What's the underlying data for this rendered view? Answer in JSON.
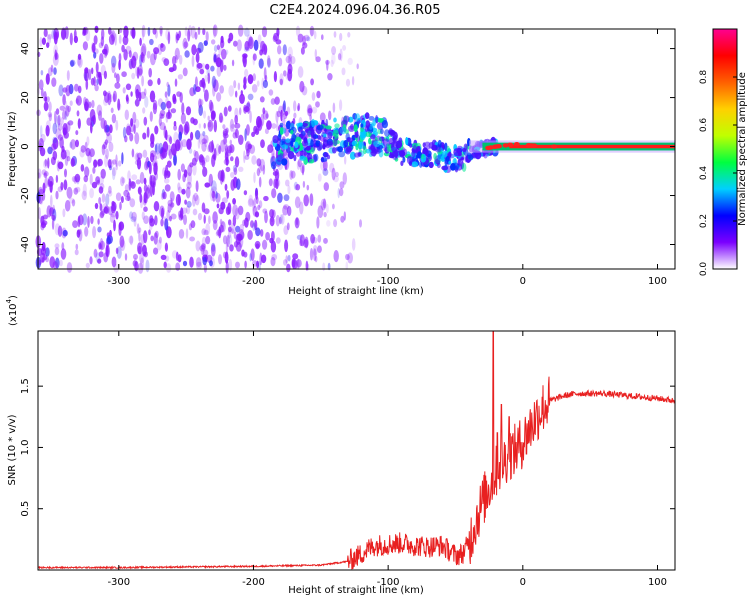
{
  "title": "C2E4.2024.096.04.36.R05",
  "chart_data": [
    {
      "type": "heatmap",
      "xlabel": "Height of straight line (km)",
      "ylabel": "Frequency (Hz)",
      "xlim": [
        -360,
        113
      ],
      "ylim": [
        -50,
        48
      ],
      "xticks": [
        -300,
        -200,
        -100,
        0,
        100
      ],
      "yticks": [
        -40,
        -20,
        0,
        20,
        40
      ],
      "colorbar": {
        "label": "Normalized spectral amplitude",
        "range": [
          0,
          1
        ],
        "ticks": [
          0.0,
          0.2,
          0.4,
          0.6,
          0.8
        ],
        "colors": [
          "#ffffff",
          "#7b00ff",
          "#0000ff",
          "#00d0ff",
          "#00ff40",
          "#c0ff00",
          "#ffd000",
          "#ff6000",
          "#ff0000",
          "#ff0090"
        ]
      },
      "features": {
        "noise_region_x": [
          -360,
          -140
        ],
        "noise_color": "#8a1cff",
        "signal_track": [
          {
            "x": -180,
            "y": 1.0
          },
          {
            "x": -150,
            "y": 2.0
          },
          {
            "x": -130,
            "y": 4.0
          },
          {
            "x": -115,
            "y": 5.0
          },
          {
            "x": -100,
            "y": 2.0
          },
          {
            "x": -90,
            "y": -2.0
          },
          {
            "x": -75,
            "y": -3.0
          },
          {
            "x": -60,
            "y": -4.0
          },
          {
            "x": -48,
            "y": -5.0
          },
          {
            "x": -40,
            "y": -3.0
          },
          {
            "x": -30,
            "y": -1.0
          },
          {
            "x": -20,
            "y": 0.0
          },
          {
            "x": -5,
            "y": 1.0
          },
          {
            "x": 5,
            "y": 0.5
          },
          {
            "x": 20,
            "y": 0.0
          },
          {
            "x": 113,
            "y": 0.0
          }
        ],
        "main_line_x": [
          -10,
          113
        ],
        "main_line_y": 0,
        "main_line_color": "#ff1a1a"
      }
    },
    {
      "type": "line",
      "xlabel": "Height of straight line (km)",
      "ylabel": "SNR (10 * v/v)",
      "y_multiplier": "(x10",
      "y_multiplier_exp": "4",
      "xlim": [
        -360,
        113
      ],
      "ylim": [
        0,
        1.95
      ],
      "xticks": [
        -300,
        -200,
        -100,
        0,
        100
      ],
      "yticks": [
        0.5,
        1.0,
        1.5
      ],
      "ytick_labels": [
        "0.5",
        "1.0",
        "1.5"
      ],
      "line_color": "#e82020",
      "series": [
        {
          "x": [
            -360,
            -300,
            -200,
            -150,
            -130,
            -120,
            -115,
            -110,
            -100,
            -90,
            -80,
            -70,
            -60,
            -50,
            -45,
            -40,
            -35,
            -30,
            -25,
            -20,
            -15,
            -10,
            -5,
            0,
            5,
            10,
            15,
            20,
            30,
            40,
            50,
            60,
            70,
            80,
            90,
            100,
            113
          ],
          "values": [
            0.02,
            0.02,
            0.03,
            0.04,
            0.07,
            0.13,
            0.17,
            0.2,
            0.21,
            0.22,
            0.2,
            0.19,
            0.2,
            0.12,
            0.13,
            0.22,
            0.4,
            0.55,
            0.68,
            0.8,
            0.88,
            0.95,
            0.98,
            1.05,
            1.15,
            1.25,
            1.33,
            1.38,
            1.42,
            1.44,
            1.44,
            1.44,
            1.43,
            1.42,
            1.41,
            1.4,
            1.38
          ]
        }
      ],
      "spikes": [
        {
          "x": -22,
          "value": 1.95
        },
        {
          "x": -19,
          "value": 1.12
        },
        {
          "x": -16,
          "value": 1.35
        },
        {
          "x": -10,
          "value": 1.25
        }
      ]
    }
  ]
}
